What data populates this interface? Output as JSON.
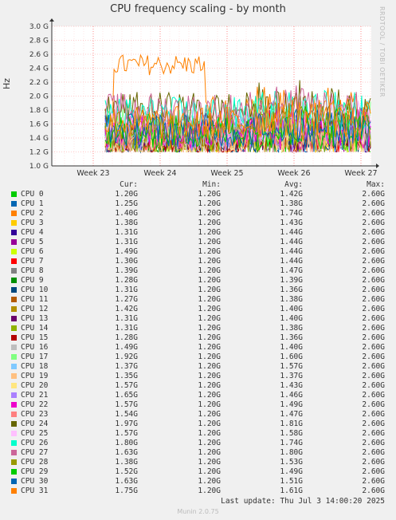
{
  "title": "CPU frequency scaling - by month",
  "side_label": "RRDTOOL / TOBI OETIKER",
  "footer": {
    "last_update": "Last update: Thu Jul  3 14:00:20 2025",
    "munin": "Munin 2.0.75"
  },
  "legend_headers": {
    "cur": "Cur:",
    "min": "Min:",
    "avg": "Avg:",
    "max": "Max:"
  },
  "chart_data": {
    "type": "line",
    "ylabel": "Hz",
    "ylim": [
      1.0,
      3.0
    ],
    "yticks": [
      "1.0 G",
      "1.2 G",
      "1.4 G",
      "1.6 G",
      "1.8 G",
      "2.0 G",
      "2.2 G",
      "2.4 G",
      "2.6 G",
      "2.8 G",
      "3.0 G"
    ],
    "xticks": [
      "Week 23",
      "Week 24",
      "Week 25",
      "Week 26",
      "Week 27"
    ],
    "series": [
      {
        "name": "CPU 0",
        "color": "#00cc00",
        "cur": "1.20G",
        "min": "1.20G",
        "avg": "1.42G",
        "max": "2.60G"
      },
      {
        "name": "CPU 1",
        "color": "#0066b3",
        "cur": "1.25G",
        "min": "1.20G",
        "avg": "1.38G",
        "max": "2.60G"
      },
      {
        "name": "CPU 2",
        "color": "#ff8000",
        "cur": "1.40G",
        "min": "1.20G",
        "avg": "1.74G",
        "max": "2.60G"
      },
      {
        "name": "CPU 3",
        "color": "#ffcc00",
        "cur": "1.38G",
        "min": "1.20G",
        "avg": "1.43G",
        "max": "2.60G"
      },
      {
        "name": "CPU 4",
        "color": "#330099",
        "cur": "1.31G",
        "min": "1.20G",
        "avg": "1.44G",
        "max": "2.60G"
      },
      {
        "name": "CPU 5",
        "color": "#990099",
        "cur": "1.31G",
        "min": "1.20G",
        "avg": "1.44G",
        "max": "2.60G"
      },
      {
        "name": "CPU 6",
        "color": "#ccff00",
        "cur": "1.49G",
        "min": "1.20G",
        "avg": "1.44G",
        "max": "2.60G"
      },
      {
        "name": "CPU 7",
        "color": "#ff0000",
        "cur": "1.30G",
        "min": "1.20G",
        "avg": "1.44G",
        "max": "2.60G"
      },
      {
        "name": "CPU 8",
        "color": "#808080",
        "cur": "1.39G",
        "min": "1.20G",
        "avg": "1.47G",
        "max": "2.60G"
      },
      {
        "name": "CPU 9",
        "color": "#008f00",
        "cur": "1.28G",
        "min": "1.20G",
        "avg": "1.39G",
        "max": "2.60G"
      },
      {
        "name": "CPU 10",
        "color": "#00487d",
        "cur": "1.31G",
        "min": "1.20G",
        "avg": "1.36G",
        "max": "2.60G"
      },
      {
        "name": "CPU 11",
        "color": "#b35a00",
        "cur": "1.27G",
        "min": "1.20G",
        "avg": "1.38G",
        "max": "2.60G"
      },
      {
        "name": "CPU 12",
        "color": "#b38f00",
        "cur": "1.42G",
        "min": "1.20G",
        "avg": "1.40G",
        "max": "2.60G"
      },
      {
        "name": "CPU 13",
        "color": "#6b006b",
        "cur": "1.31G",
        "min": "1.20G",
        "avg": "1.40G",
        "max": "2.60G"
      },
      {
        "name": "CPU 14",
        "color": "#8fb300",
        "cur": "1.31G",
        "min": "1.20G",
        "avg": "1.38G",
        "max": "2.60G"
      },
      {
        "name": "CPU 15",
        "color": "#b30000",
        "cur": "1.28G",
        "min": "1.20G",
        "avg": "1.36G",
        "max": "2.60G"
      },
      {
        "name": "CPU 16",
        "color": "#bebebe",
        "cur": "1.49G",
        "min": "1.20G",
        "avg": "1.40G",
        "max": "2.60G"
      },
      {
        "name": "CPU 17",
        "color": "#80ff80",
        "cur": "1.92G",
        "min": "1.20G",
        "avg": "1.60G",
        "max": "2.60G"
      },
      {
        "name": "CPU 18",
        "color": "#80c9ff",
        "cur": "1.37G",
        "min": "1.20G",
        "avg": "1.57G",
        "max": "2.60G"
      },
      {
        "name": "CPU 19",
        "color": "#ffc080",
        "cur": "1.35G",
        "min": "1.20G",
        "avg": "1.37G",
        "max": "2.60G"
      },
      {
        "name": "CPU 20",
        "color": "#ffe680",
        "cur": "1.57G",
        "min": "1.20G",
        "avg": "1.43G",
        "max": "2.60G"
      },
      {
        "name": "CPU 21",
        "color": "#aa80ff",
        "cur": "1.65G",
        "min": "1.20G",
        "avg": "1.46G",
        "max": "2.60G"
      },
      {
        "name": "CPU 22",
        "color": "#ee00cc",
        "cur": "1.57G",
        "min": "1.20G",
        "avg": "1.49G",
        "max": "2.60G"
      },
      {
        "name": "CPU 23",
        "color": "#ff8080",
        "cur": "1.54G",
        "min": "1.20G",
        "avg": "1.47G",
        "max": "2.60G"
      },
      {
        "name": "CPU 24",
        "color": "#666600",
        "cur": "1.97G",
        "min": "1.20G",
        "avg": "1.81G",
        "max": "2.60G"
      },
      {
        "name": "CPU 25",
        "color": "#ffbfff",
        "cur": "1.57G",
        "min": "1.20G",
        "avg": "1.58G",
        "max": "2.60G"
      },
      {
        "name": "CPU 26",
        "color": "#00ffcc",
        "cur": "1.80G",
        "min": "1.20G",
        "avg": "1.74G",
        "max": "2.60G"
      },
      {
        "name": "CPU 27",
        "color": "#cc6699",
        "cur": "1.63G",
        "min": "1.20G",
        "avg": "1.80G",
        "max": "2.60G"
      },
      {
        "name": "CPU 28",
        "color": "#999900",
        "cur": "1.38G",
        "min": "1.20G",
        "avg": "1.53G",
        "max": "2.60G"
      },
      {
        "name": "CPU 29",
        "color": "#00cc00",
        "cur": "1.52G",
        "min": "1.20G",
        "avg": "1.49G",
        "max": "2.60G"
      },
      {
        "name": "CPU 30",
        "color": "#0066b3",
        "cur": "1.63G",
        "min": "1.20G",
        "avg": "1.51G",
        "max": "2.60G"
      },
      {
        "name": "CPU 31",
        "color": "#ff8000",
        "cur": "1.75G",
        "min": "1.20G",
        "avg": "1.61G",
        "max": "2.60G"
      }
    ]
  }
}
